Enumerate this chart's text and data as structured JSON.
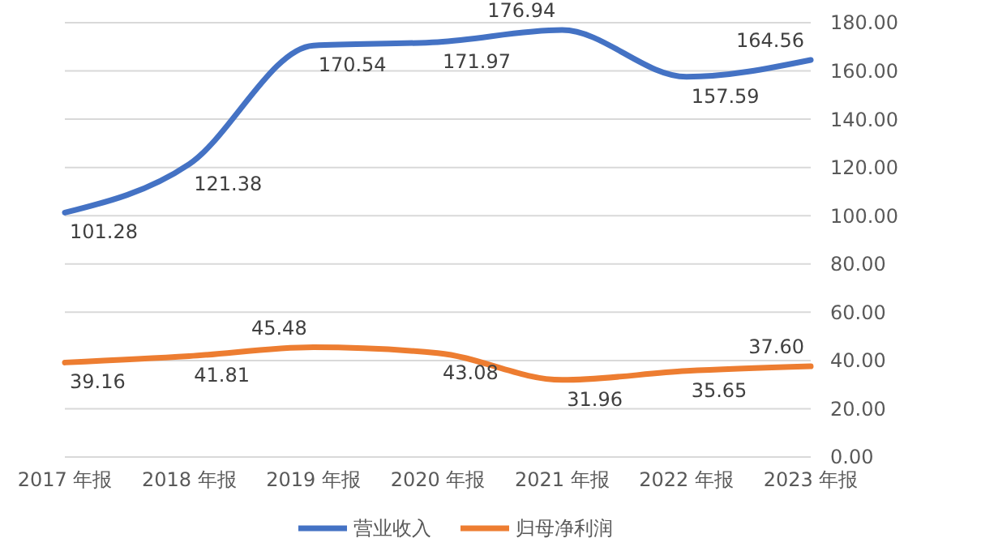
{
  "chart_data": {
    "type": "line",
    "categories": [
      "2017 年报",
      "2018 年报",
      "2019 年报",
      "2020 年报",
      "2021 年报",
      "2022 年报",
      "2023 年报"
    ],
    "series": [
      {
        "name": "营业收入",
        "color": "#4472c4",
        "values": [
          101.28,
          121.38,
          170.54,
          171.97,
          176.94,
          157.59,
          164.56
        ],
        "value_labels": [
          "101.28",
          "121.38",
          "170.54",
          "171.97",
          "176.94",
          "157.59",
          "164.56"
        ]
      },
      {
        "name": "归母净利润",
        "color": "#ed7d31",
        "values": [
          39.16,
          41.81,
          45.48,
          43.08,
          31.96,
          35.65,
          37.6
        ],
        "value_labels": [
          "39.16",
          "41.81",
          "45.48",
          "43.08",
          "31.96",
          "35.65",
          "37.60"
        ]
      }
    ],
    "ylim": [
      0,
      180
    ],
    "yticks": [
      {
        "value": 0,
        "label": "0.00"
      },
      {
        "value": 20,
        "label": "20.00"
      },
      {
        "value": 40,
        "label": "40.00"
      },
      {
        "value": 60,
        "label": "60.00"
      },
      {
        "value": 80,
        "label": "80.00"
      },
      {
        "value": 100,
        "label": "100.00"
      },
      {
        "value": 120,
        "label": "120.00"
      },
      {
        "value": 140,
        "label": "140.00"
      },
      {
        "value": 160,
        "label": "160.00"
      },
      {
        "value": 180,
        "label": "180.00"
      }
    ],
    "grid": "y",
    "legend": "bottom",
    "marker": "none",
    "line_style": "solid"
  }
}
